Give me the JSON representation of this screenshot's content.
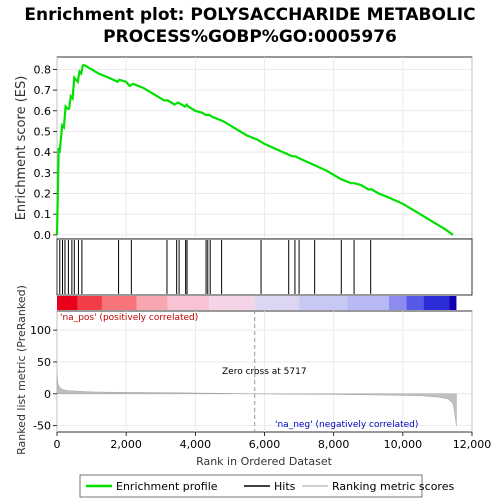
{
  "chart_data": {
    "type": "line",
    "title_lines": [
      "Enrichment plot: POLYSACCHARIDE METABOLIC",
      "PROCESS%GOBP%GO:0005976"
    ],
    "xlabel": "Rank in Ordered Dataset",
    "ylabel_top": "Enrichment score (ES)",
    "ylabel_bottom": "Ranked list metric (PreRanked)",
    "xlim": [
      0,
      12000
    ],
    "x_ticks": [
      0,
      2000,
      4000,
      6000,
      8000,
      10000,
      12000
    ],
    "x_tick_labels": [
      "0",
      "2,000",
      "4,000",
      "6,000",
      "8,000",
      "10,000",
      "12,000"
    ],
    "es_ylim": [
      -0.02,
      0.86
    ],
    "es_ticks": [
      0.0,
      0.1,
      0.2,
      0.3,
      0.4,
      0.5,
      0.6,
      0.7,
      0.8
    ],
    "es_tick_labels": [
      "0.0",
      "0.1",
      "0.2",
      "0.3",
      "0.4",
      "0.5",
      "0.6",
      "0.7",
      "0.8"
    ],
    "metric_ylim": [
      -60,
      130
    ],
    "metric_ticks": [
      -50,
      0,
      50,
      100
    ],
    "metric_tick_labels": [
      "-50",
      "0",
      "50",
      "100"
    ],
    "series": [
      {
        "name": "Enrichment profile",
        "color": "#00e000",
        "x": [
          0,
          50,
          80,
          150,
          200,
          250,
          300,
          350,
          400,
          450,
          500,
          550,
          600,
          650,
          700,
          750,
          800,
          1000,
          1200,
          1500,
          1750,
          1800,
          2000,
          2100,
          2200,
          2500,
          2800,
          3100,
          3200,
          3400,
          3500,
          3600,
          3700,
          3750,
          3800,
          4000,
          4200,
          4300,
          4400,
          4500,
          4800,
          5200,
          5500,
          5800,
          6000,
          6400,
          6800,
          6900,
          7000,
          7400,
          7800,
          8200,
          8500,
          8600,
          8800,
          9000,
          9100,
          9300,
          9600,
          10000,
          10400,
          10800,
          11200,
          11450
        ],
        "y": [
          0.0,
          0.42,
          0.41,
          0.53,
          0.52,
          0.62,
          0.61,
          0.61,
          0.67,
          0.66,
          0.76,
          0.75,
          0.74,
          0.79,
          0.78,
          0.82,
          0.82,
          0.8,
          0.78,
          0.76,
          0.74,
          0.75,
          0.74,
          0.72,
          0.73,
          0.71,
          0.68,
          0.65,
          0.65,
          0.63,
          0.64,
          0.63,
          0.62,
          0.63,
          0.62,
          0.6,
          0.59,
          0.58,
          0.58,
          0.57,
          0.55,
          0.51,
          0.48,
          0.46,
          0.44,
          0.41,
          0.38,
          0.38,
          0.37,
          0.34,
          0.31,
          0.27,
          0.25,
          0.25,
          0.24,
          0.22,
          0.22,
          0.2,
          0.18,
          0.15,
          0.11,
          0.07,
          0.03,
          0.0
        ]
      }
    ],
    "hits": [
      80,
      160,
      230,
      330,
      430,
      500,
      620,
      720,
      1780,
      2150,
      3180,
      3460,
      3530,
      3720,
      3760,
      4310,
      4360,
      4430,
      4760,
      5900,
      6700,
      6880,
      7000,
      7450,
      8220,
      8590,
      9070
    ],
    "heatmap_segments": [
      {
        "to": 600,
        "color": "#e8001a"
      },
      {
        "to": 1300,
        "color": "#f23c46"
      },
      {
        "to": 2300,
        "color": "#f7747a"
      },
      {
        "to": 3200,
        "color": "#f8a6b0"
      },
      {
        "to": 4400,
        "color": "#f8c4d4"
      },
      {
        "to": 5717,
        "color": "#f6d4e8"
      },
      {
        "to": 7000,
        "color": "#dcd6f2"
      },
      {
        "to": 8400,
        "color": "#c8c8f4"
      },
      {
        "to": 9600,
        "color": "#b8b8f4"
      },
      {
        "to": 10100,
        "color": "#8c8cf0"
      },
      {
        "to": 10600,
        "color": "#5858e8"
      },
      {
        "to": 11350,
        "color": "#2c2cd8"
      },
      {
        "to": 11550,
        "color": "#1000b0"
      }
    ],
    "metric_profile": {
      "x": [
        0,
        30,
        80,
        150,
        300,
        600,
        1000,
        1500,
        2500,
        3500,
        4500,
        5717,
        6500,
        8000,
        9500,
        10500,
        11000,
        11300,
        11450,
        11500,
        11550
      ],
      "y": [
        30,
        15,
        10,
        7,
        5,
        4,
        3,
        2.5,
        2,
        1.5,
        1,
        0,
        -0.5,
        -1,
        -2,
        -3,
        -5,
        -8,
        -15,
        -30,
        -50
      ]
    },
    "zero_cross": 5717,
    "annotations": {
      "pos": "'na_pos' (positively correlated)",
      "neg": "'na_neg' (negatively correlated)",
      "zero": "Zero cross at 5717"
    },
    "legend": [
      {
        "label": "Enrichment profile",
        "color": "#00e000"
      },
      {
        "label": "Hits",
        "color": "#000000"
      },
      {
        "label": "Ranking metric scores",
        "color": "#c0c0c0"
      }
    ]
  }
}
